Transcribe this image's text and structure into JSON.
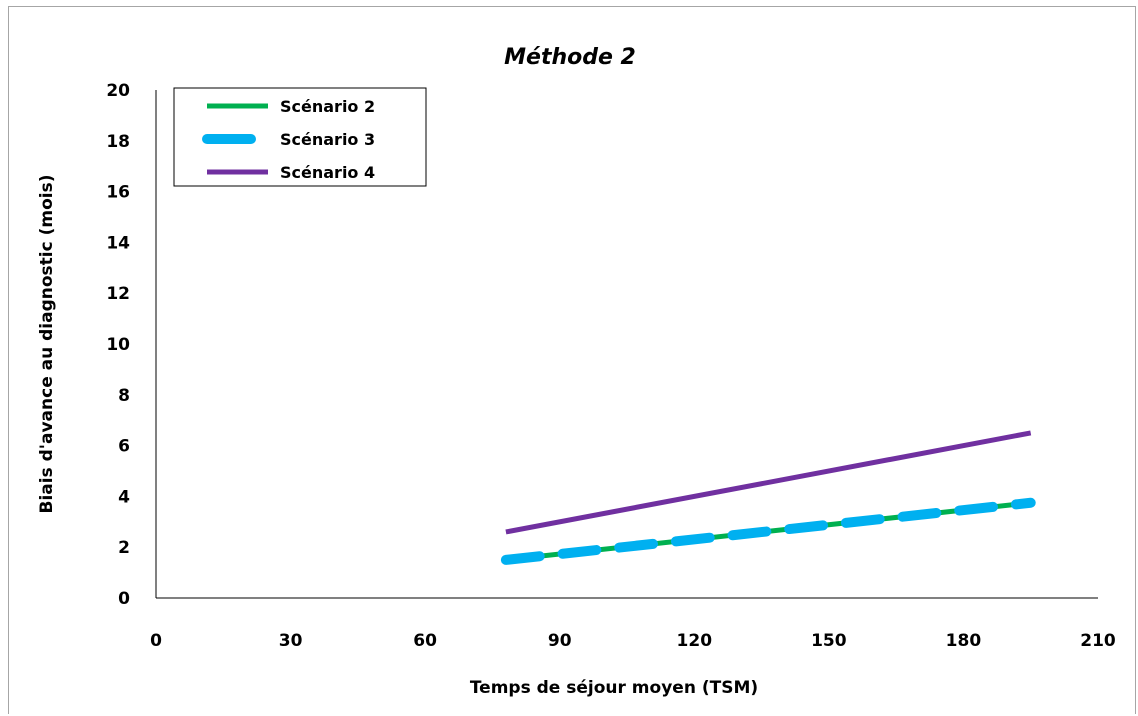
{
  "chart_data": {
    "type": "line",
    "title": "Méthode 2",
    "xlabel": "Temps de séjour moyen (TSM)",
    "ylabel": "Biais d'avance au diagnostic (mois)",
    "xlim": [
      0,
      210
    ],
    "ylim": [
      0,
      20
    ],
    "xticks": [
      0,
      30,
      60,
      90,
      120,
      150,
      180,
      210
    ],
    "yticks": [
      0,
      2,
      4,
      6,
      8,
      10,
      12,
      14,
      16,
      18,
      20
    ],
    "grid": false,
    "legend_position": "top-left",
    "series": [
      {
        "name": "Scénario 2",
        "color": "#00b050",
        "style": "solid",
        "points": [
          [
            78,
            1.5
          ],
          [
            195,
            3.75
          ]
        ]
      },
      {
        "name": "Scénario 3",
        "color": "#00b0f0",
        "style": "dashed",
        "points": [
          [
            78,
            1.5
          ],
          [
            195,
            3.75
          ]
        ]
      },
      {
        "name": "Scénario 4",
        "color": "#7030a0",
        "style": "solid",
        "points": [
          [
            78,
            2.6
          ],
          [
            195,
            6.5
          ]
        ]
      }
    ]
  }
}
